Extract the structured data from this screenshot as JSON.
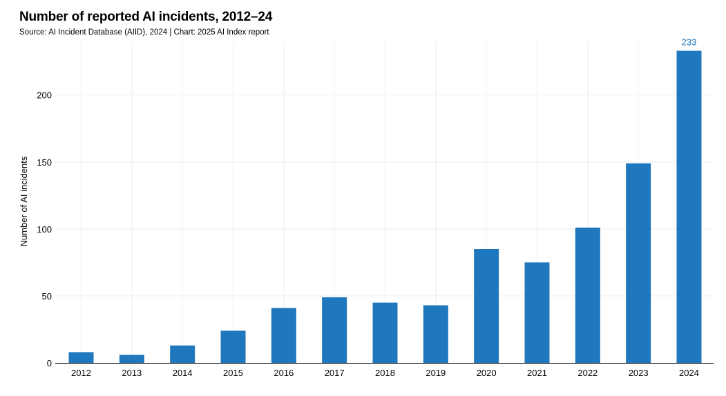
{
  "title": "Number of reported AI incidents, 2012–24",
  "subtitle": "Source: AI Incident Database (AIID), 2024 | Chart: 2025 AI Index report",
  "colors": {
    "bar": "#1f77bd",
    "highlight_label": "#1f77bd",
    "grid": "#eeeeee",
    "axis": "#000000"
  },
  "chart_data": {
    "type": "bar",
    "categories": [
      "2012",
      "2013",
      "2014",
      "2015",
      "2016",
      "2017",
      "2018",
      "2019",
      "2020",
      "2021",
      "2022",
      "2023",
      "2024"
    ],
    "values": [
      8,
      6,
      13,
      24,
      41,
      49,
      45,
      43,
      85,
      75,
      101,
      149,
      233
    ],
    "data_labels": [
      {
        "category": "2024",
        "text": "233"
      }
    ],
    "title": "Number of reported AI incidents, 2012–24",
    "xlabel": "",
    "ylabel": "Number of AI incidents",
    "ylim": [
      0,
      240
    ],
    "yticks": [
      0,
      50,
      100,
      150,
      200
    ],
    "grid": true,
    "legend": "none"
  }
}
